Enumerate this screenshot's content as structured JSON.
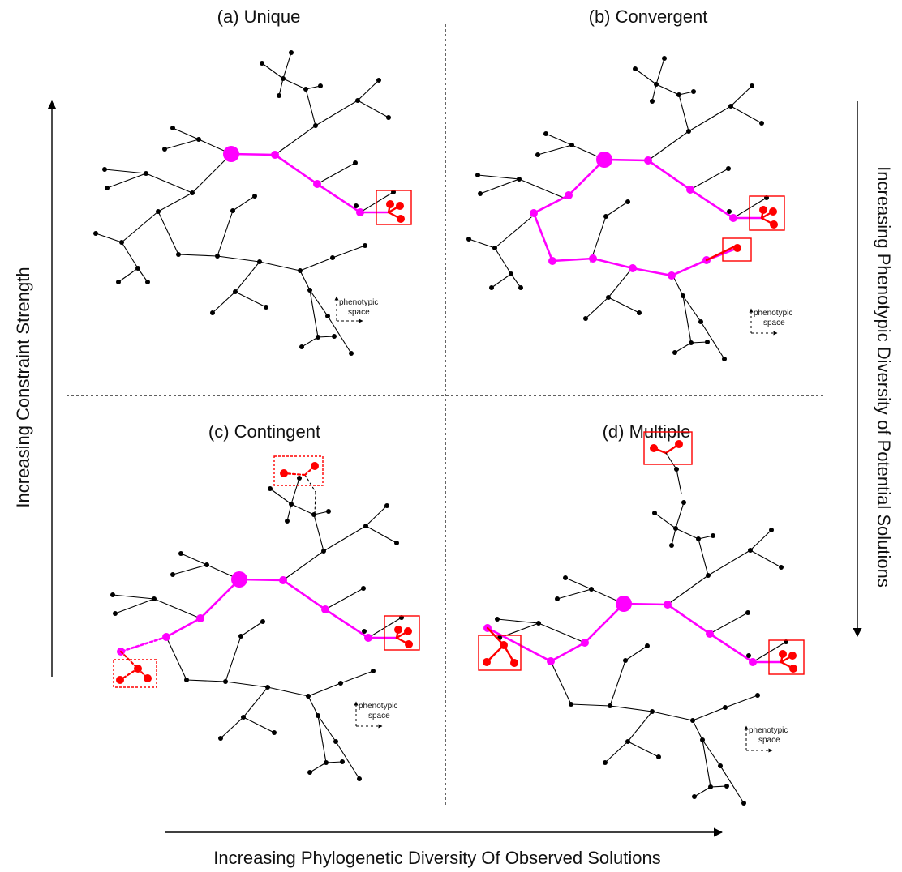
{
  "panels": [
    {
      "id": "a",
      "title": "(a) Unique",
      "variant": "unique",
      "space_label_1": "phenotypic",
      "space_label_2": "space"
    },
    {
      "id": "b",
      "title": "(b) Convergent",
      "variant": "convergent",
      "space_label_1": "phenotypic",
      "space_label_2": "space"
    },
    {
      "id": "c",
      "title": "(c) Contingent",
      "variant": "contingent",
      "space_label_1": "phenotypic",
      "space_label_2": "space"
    },
    {
      "id": "d",
      "title": "(d) Multiple",
      "variant": "multiple",
      "space_label_1": "phenotypic",
      "space_label_2": "space"
    }
  ],
  "axes": {
    "left": "Increasing Constraint Strength",
    "right": "Increasing Phenotypic Diversity of Potential Solutions",
    "bottom": "Increasing Phylogenetic Diversity Of Observed Solutions"
  },
  "colors": {
    "tree": "#000000",
    "path": "#ff00ff",
    "solution": "#ff0000",
    "divider": "#000000"
  }
}
